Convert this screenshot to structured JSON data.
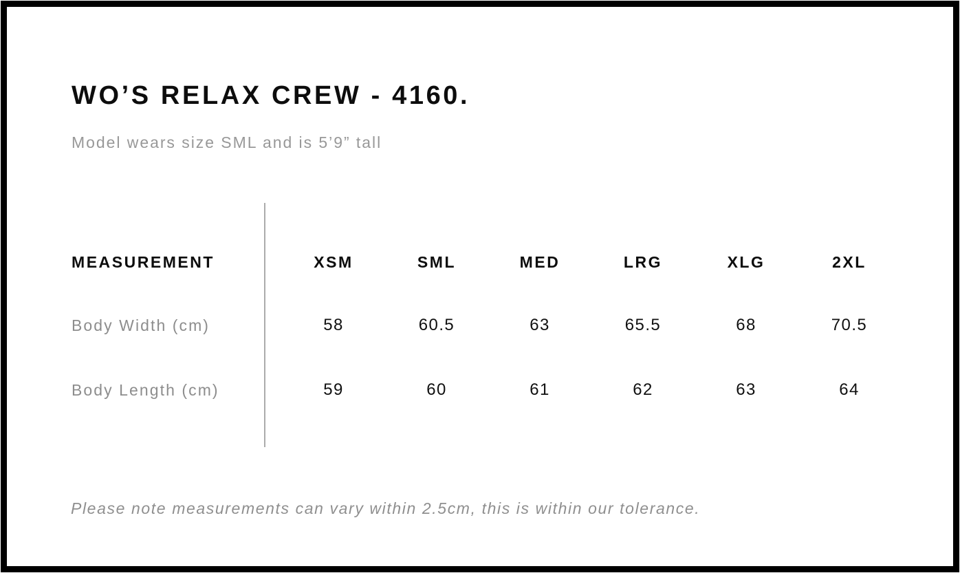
{
  "page": {
    "title": "WO’S RELAX CREW - 4160.",
    "subtitle": "Model wears size SML and is 5’9” tall",
    "footnote": "Please note measurements can vary within 2.5cm, this is within our tolerance."
  },
  "chart_data": {
    "type": "table",
    "title": "WO’S RELAX CREW - 4160.",
    "subtitle": "Model wears size SML and is 5’9” tall",
    "columns": [
      "MEASUREMENT",
      "XSM",
      "SML",
      "MED",
      "LRG",
      "XLG",
      "2XL"
    ],
    "rows": [
      [
        "Body Width (cm)",
        "58",
        "60.5",
        "63",
        "65.5",
        "68",
        "70.5"
      ],
      [
        "Body Length (cm)",
        "59",
        "60",
        "61",
        "62",
        "63",
        "64"
      ]
    ],
    "footnote": "Please note measurements can vary within 2.5cm, this is within our tolerance."
  },
  "colors": {
    "text_primary": "#0d0d0d",
    "text_muted": "#8f8f8f",
    "divider": "#ababab",
    "frame_border": "#000000",
    "background": "#ffffff"
  }
}
